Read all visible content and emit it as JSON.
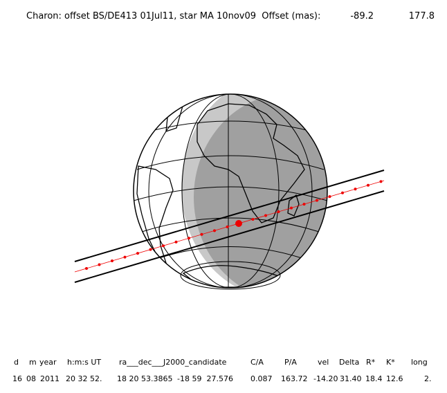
{
  "header": {
    "title": "Charon: offset BS/DE413 01Jul11, star MA 10nov09  Offset (mas):",
    "offset_x": "-89.2",
    "offset_y": "177.8"
  },
  "table": {
    "headers": [
      "d",
      "m",
      "year",
      "h:m:s UT",
      "ra___dec___J2000_candidate",
      "C/A",
      "P/A",
      "vel",
      "Delta",
      "R*",
      "K*",
      "long"
    ],
    "rows": [
      [
        "16",
        "08",
        "2011",
        "20 32 52.",
        "18 20 53.3865",
        "-18 59  27.576",
        "0.087",
        "163.72",
        "-14.20",
        "31.40",
        "18.4",
        "12.6",
        "2."
      ]
    ]
  }
}
